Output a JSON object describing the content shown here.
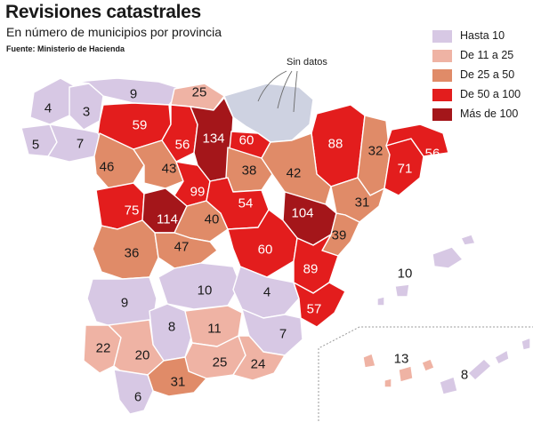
{
  "title": "Revisiones catastrales",
  "subtitle": "En número de municipios por provincia",
  "source": "Fuente: Ministerio de Hacienda",
  "annotation": "Sin datos",
  "colors": {
    "hasta10": "#d7c8e4",
    "de11a25": "#efb3a4",
    "de25a50": "#e08b68",
    "de50a100": "#e31d1d",
    "mas100": "#a4161a",
    "sindatos": "#ced2e1"
  },
  "legend": [
    {
      "label": "Hasta 10",
      "class": "hasta10"
    },
    {
      "label": "De 11 a 25",
      "class": "de11a25"
    },
    {
      "label": "De 25 a 50",
      "class": "de25a50"
    },
    {
      "label": "De 50 a 100",
      "class": "de50a100"
    },
    {
      "label": "Más de 100",
      "class": "mas100"
    }
  ],
  "provinces": [
    {
      "value": "4",
      "class": "hasta10"
    },
    {
      "value": "3",
      "class": "hasta10"
    },
    {
      "value": "9",
      "class": "hasta10"
    },
    {
      "value": "5",
      "class": "hasta10"
    },
    {
      "value": "7",
      "class": "hasta10"
    },
    {
      "value": "25",
      "class": "de11a25"
    },
    {
      "value": "59",
      "class": "de50a100"
    },
    {
      "value": "56",
      "class": "de50a100"
    },
    {
      "value": "134",
      "class": "mas100"
    },
    {
      "value": "60",
      "class": "de50a100"
    },
    {
      "value": "88",
      "class": "de50a100"
    },
    {
      "value": "32",
      "class": "de25a50"
    },
    {
      "value": "71",
      "class": "de50a100"
    },
    {
      "value": "56",
      "class": "de50a100"
    },
    {
      "value": "46",
      "class": "de25a50"
    },
    {
      "value": "43",
      "class": "de25a50"
    },
    {
      "value": "38",
      "class": "de25a50"
    },
    {
      "value": "42",
      "class": "de25a50"
    },
    {
      "value": "99",
      "class": "de50a100"
    },
    {
      "value": "75",
      "class": "de50a100"
    },
    {
      "value": "114",
      "class": "mas100"
    },
    {
      "value": "40",
      "class": "de25a50"
    },
    {
      "value": "54",
      "class": "de50a100"
    },
    {
      "value": "104",
      "class": "mas100"
    },
    {
      "value": "31",
      "class": "de25a50"
    },
    {
      "value": "36",
      "class": "de25a50"
    },
    {
      "value": "47",
      "class": "de25a50"
    },
    {
      "value": "60",
      "class": "de50a100"
    },
    {
      "value": "39",
      "class": "de25a50"
    },
    {
      "value": "89",
      "class": "de50a100"
    },
    {
      "value": "9",
      "class": "hasta10"
    },
    {
      "value": "10",
      "class": "hasta10"
    },
    {
      "value": "4",
      "class": "hasta10"
    },
    {
      "value": "57",
      "class": "de50a100"
    },
    {
      "value": "8",
      "class": "hasta10"
    },
    {
      "value": "11",
      "class": "de11a25"
    },
    {
      "value": "7",
      "class": "hasta10"
    },
    {
      "value": "22",
      "class": "de11a25"
    },
    {
      "value": "20",
      "class": "de11a25"
    },
    {
      "value": "25",
      "class": "de11a25"
    },
    {
      "value": "24",
      "class": "de11a25"
    },
    {
      "value": "31",
      "class": "de25a50"
    },
    {
      "value": "6",
      "class": "hasta10"
    },
    {
      "value": "10",
      "class": "hasta10"
    },
    {
      "value": "13",
      "class": "de11a25"
    },
    {
      "value": "8",
      "class": "hasta10"
    }
  ]
}
